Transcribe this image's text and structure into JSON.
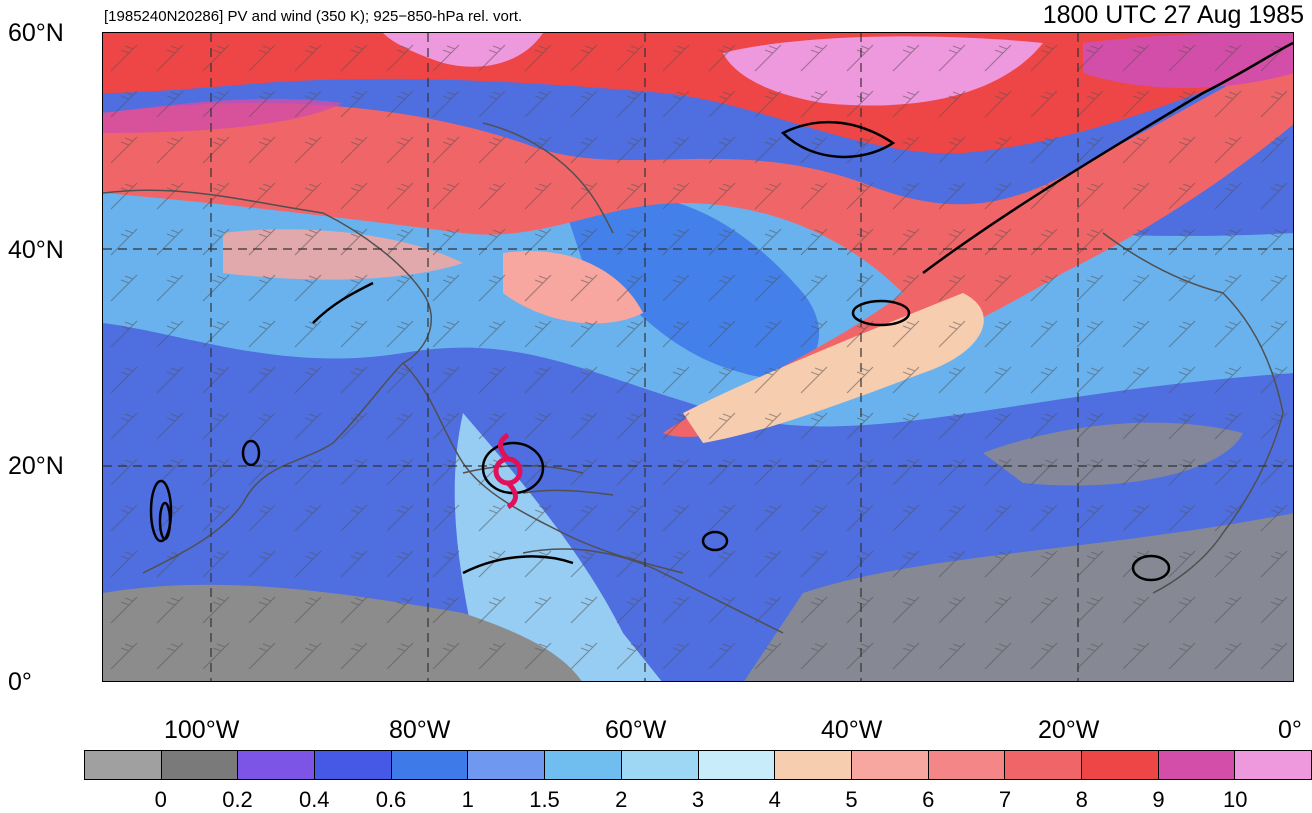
{
  "header": {
    "left_title": "[1985240N20286] PV and wind (350 K); 925−850-hPa rel. vort.",
    "right_title": "1800 UTC 27 Aug 1985"
  },
  "axes": {
    "lat_labels": [
      "60°N",
      "40°N",
      "20°N",
      "0°"
    ],
    "lon_labels": [
      "100°W",
      "80°W",
      "60°W",
      "40°W",
      "20°W",
      "0°"
    ]
  },
  "map": {
    "storm_symbol": "hurricane-symbol",
    "storm_color": "#e0105a"
  },
  "colorbar": {
    "colors": [
      "#a0a0a0",
      "#7a7a7a",
      "#7c54e6",
      "#4658e6",
      "#3f7ae9",
      "#6f98f0",
      "#6fbeef",
      "#9ed7f4",
      "#c9ecfb",
      "#f7cdb0",
      "#f7a7a0",
      "#f48688",
      "#f06668",
      "#ee4646",
      "#d24ea8",
      "#ee98de"
    ],
    "labels": [
      "0",
      "0.2",
      "0.4",
      "0.6",
      "1",
      "1.5",
      "2",
      "3",
      "4",
      "5",
      "6",
      "7",
      "8",
      "9",
      "10"
    ]
  }
}
